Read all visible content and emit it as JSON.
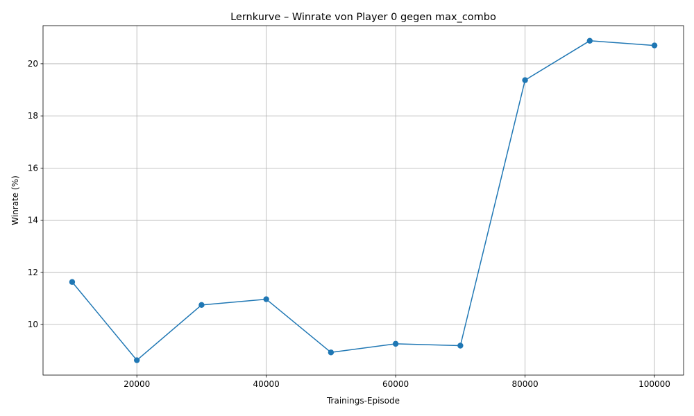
{
  "chart_data": {
    "type": "line",
    "title": "Lernkurve – Winrate von Player 0 gegen max_combo",
    "xlabel": "Trainings-Episode",
    "ylabel": "Winrate (%)",
    "x": [
      10000,
      20000,
      30000,
      40000,
      50000,
      60000,
      70000,
      80000,
      90000,
      100000
    ],
    "series": [
      {
        "values": [
          11.63,
          8.63,
          10.75,
          10.97,
          8.93,
          9.26,
          9.19,
          19.37,
          20.88,
          20.7
        ],
        "color": "#1f77b4",
        "marker": "circle"
      }
    ],
    "xlim": [
      5500,
      104500
    ],
    "ylim": [
      8.06,
      21.46
    ],
    "xticks": [
      20000,
      40000,
      60000,
      80000,
      100000
    ],
    "yticks": [
      10,
      12,
      14,
      16,
      18,
      20
    ],
    "grid": true,
    "legend": "none"
  }
}
